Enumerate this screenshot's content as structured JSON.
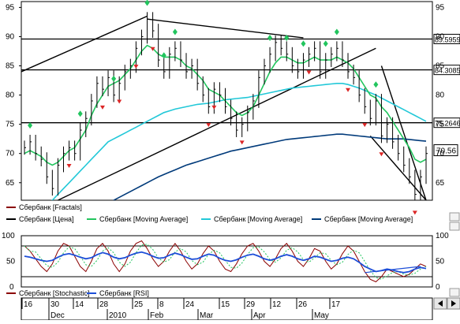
{
  "price_panel": {
    "y_axis_left_ticks": [
      65,
      70,
      75,
      80,
      85,
      90,
      95
    ],
    "y_axis_right_ticks": [
      65,
      70,
      75,
      80,
      85,
      90,
      95
    ],
    "hlines": [
      {
        "value": 89.5959,
        "label": "89.5959"
      },
      {
        "value": 84.3085,
        "label": "84.3085"
      },
      {
        "value": 75.2646,
        "label": "75.2646"
      }
    ],
    "last_price": {
      "value": 70.56,
      "label": "70.56"
    }
  },
  "legend_price": [
    {
      "label": "Сбербанк [Fractals]",
      "color": "#8b0000"
    },
    {
      "label": "Сбербанк [Цена]",
      "color": "#000000"
    },
    {
      "label": "Сбербанк [Moving Average]",
      "color": "#22c55e"
    },
    {
      "label": "Сбербанк [Moving Average]",
      "color": "#22c8d8"
    },
    {
      "label": "Сбербанк [Moving Average]",
      "color": "#003a7a"
    }
  ],
  "osc_panel": {
    "y_axis_left_ticks": [
      0,
      50,
      100
    ],
    "y_axis_right_ticks": [
      0,
      50,
      100
    ]
  },
  "legend_osc": [
    {
      "label": "Сбербанк [Stochastic]",
      "color": "#8b0000"
    },
    {
      "label": "Сбербанк [RSI]",
      "color": "#1d4ed8"
    }
  ],
  "x_axis": {
    "day_labels": [
      "16",
      "30",
      "14",
      "28",
      "25",
      "8",
      "24",
      "15",
      "29",
      "12",
      "26",
      "17"
    ],
    "month_labels": [
      "Dec",
      "2010",
      "Feb",
      "Mar",
      "Apr",
      "May"
    ]
  },
  "chart_data": {
    "type": "line",
    "price": {
      "ylim": [
        62,
        96
      ],
      "close": [
        71,
        72,
        70,
        69,
        66,
        64,
        68,
        70,
        71,
        70,
        74,
        76,
        79,
        82,
        81,
        83,
        80,
        82,
        84,
        85,
        88,
        90,
        93,
        91,
        86,
        84,
        87,
        88,
        86,
        84,
        85,
        82,
        80,
        78,
        81,
        80,
        78,
        76,
        74,
        75,
        77,
        79,
        83,
        85,
        87,
        89,
        88,
        87,
        85,
        84,
        86,
        87,
        88,
        84,
        86,
        87,
        88,
        86,
        84,
        83,
        80,
        78,
        76,
        79,
        73,
        75,
        72,
        70,
        68,
        66,
        63,
        66,
        70
      ],
      "ma_fast": [
        70,
        70.5,
        70,
        69.5,
        68.5,
        68,
        68.5,
        69.5,
        70.5,
        71,
        72.5,
        74,
        76.5,
        78.5,
        80,
        81.5,
        82,
        82.5,
        83.5,
        84.5,
        86,
        87.5,
        88.5,
        88,
        87,
        86.5,
        86.5,
        86.5,
        86,
        85,
        84.5,
        83.5,
        82.5,
        81,
        80.5,
        80,
        79,
        78,
        77,
        76.5,
        77,
        78,
        80,
        82,
        84,
        85.5,
        86.5,
        86.5,
        86,
        85.5,
        85.5,
        86,
        86.5,
        86,
        86,
        86,
        86.5,
        86,
        85.5,
        84.5,
        83,
        81.5,
        80,
        79.5,
        78,
        77,
        75.5,
        74,
        72.5,
        71,
        69,
        68.5,
        69
      ],
      "ma_mid": [
        57,
        58,
        59,
        60,
        61,
        62,
        63,
        64,
        65,
        66,
        67,
        68,
        69,
        70,
        71,
        72,
        72.5,
        73,
        73.5,
        74,
        74.5,
        75,
        75.5,
        76,
        76.5,
        77,
        77.3,
        77.6,
        77.8,
        78,
        78.2,
        78.4,
        78.5,
        78.6,
        78.8,
        79,
        79.2,
        79.3,
        79.4,
        79.5,
        79.6,
        79.8,
        80,
        80.2,
        80.4,
        80.6,
        80.8,
        81,
        81.2,
        81.3,
        81.4,
        81.5,
        81.6,
        81.7,
        81.8,
        81.9,
        82,
        82,
        81.8,
        81.5,
        81.2,
        80.8,
        80.4,
        80,
        79.5,
        79,
        78.5,
        78,
        77.5,
        77,
        76.5,
        76,
        75.5
      ],
      "ma_slow": [
        47,
        48,
        49,
        50,
        51,
        52,
        53,
        54,
        55,
        56,
        57,
        58,
        58.8,
        59.6,
        60.4,
        61.2,
        62,
        62.5,
        63,
        63.5,
        64,
        64.5,
        65,
        65.5,
        66,
        66.4,
        66.8,
        67.2,
        67.6,
        68,
        68.3,
        68.6,
        68.9,
        69.2,
        69.5,
        69.8,
        70.1,
        70.4,
        70.6,
        70.8,
        71,
        71.2,
        71.4,
        71.6,
        71.8,
        72,
        72.2,
        72.4,
        72.5,
        72.6,
        72.7,
        72.8,
        72.9,
        73,
        73.1,
        73.2,
        73.3,
        73.3,
        73.2,
        73.1,
        73,
        72.9,
        72.8,
        72.7,
        72.6,
        72.5,
        72.5,
        72.5,
        72.5,
        72.4,
        72.3,
        72.2,
        72.1
      ],
      "fractals_up_idx": [
        1,
        10,
        16,
        22,
        25,
        27,
        44,
        47,
        50,
        54,
        56,
        63
      ],
      "fractals_down_idx": [
        8,
        14,
        17,
        20,
        23,
        33,
        34,
        39,
        51,
        58,
        61,
        64,
        70
      ]
    },
    "oscillator": {
      "ylim": [
        0,
        100
      ],
      "stochastic": [
        80,
        70,
        55,
        40,
        30,
        45,
        70,
        85,
        80,
        60,
        40,
        30,
        50,
        75,
        85,
        70,
        45,
        30,
        45,
        70,
        85,
        90,
        75,
        55,
        40,
        50,
        70,
        85,
        70,
        50,
        35,
        45,
        65,
        80,
        70,
        50,
        35,
        30,
        45,
        65,
        80,
        85,
        70,
        50,
        40,
        55,
        75,
        85,
        70,
        50,
        40,
        55,
        75,
        70,
        50,
        35,
        45,
        65,
        80,
        70,
        50,
        30,
        15,
        10,
        20,
        35,
        30,
        25,
        20,
        25,
        35,
        45,
        40
      ],
      "rsi": [
        60,
        58,
        55,
        52,
        50,
        52,
        58,
        63,
        65,
        62,
        58,
        55,
        57,
        63,
        67,
        64,
        58,
        55,
        57,
        62,
        66,
        68,
        65,
        60,
        56,
        57,
        62,
        66,
        63,
        58,
        54,
        55,
        60,
        64,
        62,
        56,
        52,
        50,
        53,
        58,
        62,
        64,
        60,
        55,
        52,
        55,
        60,
        63,
        60,
        55,
        52,
        55,
        60,
        58,
        54,
        50,
        52,
        56,
        58,
        55,
        48,
        40,
        35,
        30,
        32,
        35,
        33,
        30,
        28,
        30,
        35,
        38,
        36
      ]
    }
  }
}
